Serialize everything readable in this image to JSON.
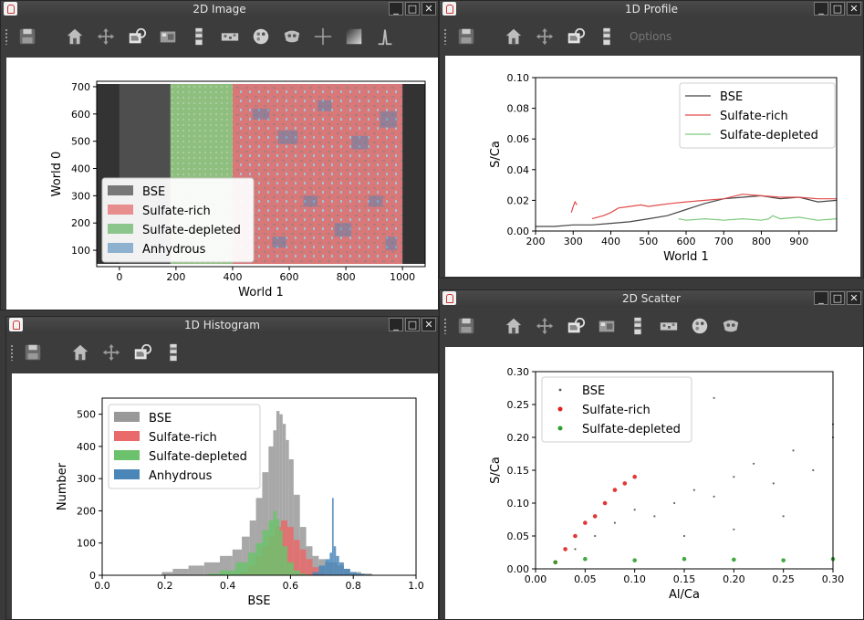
{
  "windows": {
    "image2d": {
      "title": "2D Image",
      "toolbar": [
        "save-icon",
        "home-icon",
        "pan-icon",
        "zoom-icon",
        "image-icon",
        "colorbar-icon",
        "contrast-icon",
        "palette-icon",
        "mask-icon",
        "crosshair-icon",
        "gradient-icon",
        "profile-icon"
      ]
    },
    "profile1d": {
      "title": "1D Profile",
      "toolbar": [
        "save-icon",
        "home-icon",
        "pan-icon",
        "zoom-icon",
        "colorbar-icon"
      ],
      "options_label": "Options"
    },
    "histogram1d": {
      "title": "1D Histogram",
      "toolbar": [
        "save-icon",
        "home-icon",
        "pan-icon",
        "zoom-icon",
        "colorbar-icon"
      ]
    },
    "scatter2d": {
      "title": "2D Scatter",
      "toolbar": [
        "save-icon",
        "home-icon",
        "pan-icon",
        "zoom-icon",
        "image-icon",
        "colorbar-icon",
        "contrast-icon",
        "palette-icon",
        "mask-icon"
      ]
    }
  },
  "colors": {
    "bse": "#555555",
    "sulfate_rich": "#e24b4b",
    "sulfate_depleted": "#3aa33a",
    "anhydrous": "#4a86b8"
  },
  "chart_data": [
    {
      "id": "image2d",
      "type": "heatmap",
      "xlabel": "World 1",
      "ylabel": "World 0",
      "xticks": [
        0,
        200,
        400,
        600,
        800,
        1000
      ],
      "yticks": [
        100,
        200,
        300,
        400,
        500,
        600,
        700
      ],
      "xlim": [
        -80,
        1080
      ],
      "ylim": [
        40,
        720
      ],
      "image_extent": {
        "x": [
          -80,
          1080
        ],
        "y": [
          50,
          710
        ]
      },
      "regions": [
        {
          "name": "BSE",
          "x": [
            0,
            180
          ]
        },
        {
          "name": "Sulfate-depleted",
          "x": [
            180,
            480
          ]
        },
        {
          "name": "Sulfate-rich",
          "x": [
            400,
            1000
          ]
        },
        {
          "name": "Anhydrous",
          "x": [
            450,
            1000
          ]
        }
      ],
      "legend": [
        "BSE",
        "Sulfate-rich",
        "Sulfate-depleted",
        "Anhydrous"
      ],
      "legend_loc": "lower-left"
    },
    {
      "id": "profile1d",
      "type": "line",
      "xlabel": "World 1",
      "ylabel": "S/Ca",
      "xlim": [
        200,
        1000
      ],
      "ylim": [
        0.0,
        0.1
      ],
      "xticks": [
        200,
        300,
        400,
        500,
        600,
        700,
        800,
        900
      ],
      "yticks": [
        0.0,
        0.02,
        0.04,
        0.06,
        0.08,
        0.1
      ],
      "ytick_labels": [
        "0.00",
        "0.02",
        "0.04",
        "0.06",
        "0.08",
        "0.10"
      ],
      "legend_loc": "top-right",
      "series": [
        {
          "name": "BSE",
          "color": "#444444",
          "x": [
            200,
            250,
            300,
            350,
            400,
            450,
            500,
            550,
            600,
            650,
            700,
            750,
            800,
            850,
            900,
            950,
            1000
          ],
          "y": [
            0.003,
            0.003,
            0.004,
            0.004,
            0.005,
            0.006,
            0.008,
            0.01,
            0.014,
            0.018,
            0.021,
            0.022,
            0.023,
            0.021,
            0.022,
            0.019,
            0.02
          ]
        },
        {
          "name": "Sulfate-rich",
          "color": "#e24b4b",
          "segments": [
            {
              "x": [
                295,
                300,
                305,
                310
              ],
              "y": [
                0.012,
                0.016,
                0.019,
                0.017
              ]
            },
            {
              "x": [
                350,
                380,
                400,
                420,
                450,
                480,
                500,
                530,
                560,
                600,
                650,
                700,
                750,
                800,
                850,
                900,
                950,
                1000
              ],
              "y": [
                0.008,
                0.01,
                0.012,
                0.015,
                0.016,
                0.017,
                0.016,
                0.017,
                0.018,
                0.019,
                0.02,
                0.021,
                0.024,
                0.023,
                0.022,
                0.022,
                0.021,
                0.021
              ]
            }
          ]
        },
        {
          "name": "Sulfate-depleted",
          "color": "#7dc97d",
          "x": [
            580,
            600,
            650,
            700,
            750,
            800,
            820,
            830,
            850,
            900,
            950,
            1000
          ],
          "y": [
            0.008,
            0.007,
            0.008,
            0.007,
            0.008,
            0.007,
            0.008,
            0.01,
            0.008,
            0.009,
            0.007,
            0.008
          ]
        }
      ]
    },
    {
      "id": "histogram1d",
      "type": "bar",
      "xlabel": "BSE",
      "ylabel": "Number",
      "xlim": [
        0.0,
        1.0
      ],
      "ylim": [
        0,
        550
      ],
      "xticks": [
        0.0,
        0.2,
        0.4,
        0.6,
        0.8,
        1.0
      ],
      "xtick_labels": [
        "0.0",
        "0.2",
        "0.4",
        "0.6",
        "0.8",
        "1.0"
      ],
      "yticks": [
        0,
        100,
        200,
        300,
        400,
        500
      ],
      "legend_loc": "top-left",
      "series": [
        {
          "name": "BSE",
          "color": "#999999",
          "x": [
            0.2,
            0.25,
            0.3,
            0.35,
            0.4,
            0.43,
            0.46,
            0.48,
            0.5,
            0.52,
            0.54,
            0.55,
            0.56,
            0.57,
            0.58,
            0.59,
            0.6,
            0.62,
            0.64,
            0.66,
            0.68,
            0.7,
            0.72,
            0.74,
            0.76,
            0.78,
            0.8,
            0.85
          ],
          "y": [
            10,
            20,
            30,
            40,
            60,
            80,
            120,
            170,
            240,
            320,
            400,
            450,
            510,
            500,
            470,
            420,
            360,
            250,
            150,
            90,
            60,
            50,
            40,
            40,
            30,
            20,
            10,
            5
          ]
        },
        {
          "name": "Sulfate-rich",
          "color": "#e86a6a",
          "x": [
            0.45,
            0.48,
            0.5,
            0.52,
            0.54,
            0.56,
            0.58,
            0.6,
            0.62,
            0.64,
            0.66,
            0.68,
            0.7
          ],
          "y": [
            10,
            30,
            60,
            90,
            120,
            150,
            170,
            150,
            110,
            80,
            50,
            25,
            8
          ]
        },
        {
          "name": "Sulfate-depleted",
          "color": "#6cc26c",
          "x": [
            0.35,
            0.4,
            0.45,
            0.48,
            0.5,
            0.52,
            0.54,
            0.55,
            0.56,
            0.57,
            0.58,
            0.6,
            0.62,
            0.64
          ],
          "y": [
            5,
            15,
            40,
            70,
            100,
            140,
            170,
            200,
            175,
            140,
            90,
            40,
            15,
            5
          ]
        },
        {
          "name": "Anhydrous",
          "color": "#4a86b8",
          "x": [
            0.68,
            0.7,
            0.72,
            0.73,
            0.735,
            0.74,
            0.75,
            0.76,
            0.78,
            0.8,
            0.82,
            0.85
          ],
          "y": [
            10,
            30,
            50,
            70,
            240,
            90,
            60,
            40,
            20,
            10,
            5,
            2
          ]
        }
      ]
    },
    {
      "id": "scatter2d",
      "type": "scatter",
      "xlabel": "Al/Ca",
      "ylabel": "S/Ca",
      "xlim": [
        0.0,
        0.3
      ],
      "ylim": [
        0.0,
        0.3
      ],
      "xticks": [
        0.0,
        0.05,
        0.1,
        0.15,
        0.2,
        0.25,
        0.3
      ],
      "xtick_labels": [
        "0.00",
        "0.05",
        "0.10",
        "0.15",
        "0.20",
        "0.25",
        "0.30"
      ],
      "yticks": [
        0.0,
        0.05,
        0.1,
        0.15,
        0.2,
        0.25,
        0.3
      ],
      "ytick_labels": [
        "0.00",
        "0.05",
        "0.10",
        "0.15",
        "0.20",
        "0.25",
        "0.30"
      ],
      "legend_loc": "top-left",
      "series": [
        {
          "name": "BSE",
          "color": "#555555",
          "points": [
            [
              0.02,
              0.01
            ],
            [
              0.04,
              0.03
            ],
            [
              0.06,
              0.05
            ],
            [
              0.08,
              0.07
            ],
            [
              0.1,
              0.09
            ],
            [
              0.12,
              0.08
            ],
            [
              0.14,
              0.1
            ],
            [
              0.16,
              0.12
            ],
            [
              0.18,
              0.11
            ],
            [
              0.2,
              0.14
            ],
            [
              0.22,
              0.16
            ],
            [
              0.24,
              0.13
            ],
            [
              0.26,
              0.18
            ],
            [
              0.28,
              0.15
            ],
            [
              0.3,
              0.2
            ],
            [
              0.15,
              0.05
            ],
            [
              0.2,
              0.06
            ],
            [
              0.25,
              0.08
            ],
            [
              0.18,
              0.26
            ],
            [
              0.3,
              0.22
            ]
          ]
        },
        {
          "name": "Sulfate-rich",
          "color": "#e02020",
          "points": [
            [
              0.02,
              0.01
            ],
            [
              0.03,
              0.03
            ],
            [
              0.04,
              0.05
            ],
            [
              0.05,
              0.07
            ],
            [
              0.06,
              0.08
            ],
            [
              0.07,
              0.1
            ],
            [
              0.08,
              0.12
            ],
            [
              0.09,
              0.13
            ],
            [
              0.1,
              0.14
            ]
          ]
        },
        {
          "name": "Sulfate-depleted",
          "color": "#2ca02c",
          "points": [
            [
              0.02,
              0.01
            ],
            [
              0.05,
              0.015
            ],
            [
              0.1,
              0.013
            ],
            [
              0.15,
              0.015
            ],
            [
              0.2,
              0.014
            ],
            [
              0.25,
              0.013
            ],
            [
              0.3,
              0.015
            ]
          ]
        }
      ]
    }
  ]
}
